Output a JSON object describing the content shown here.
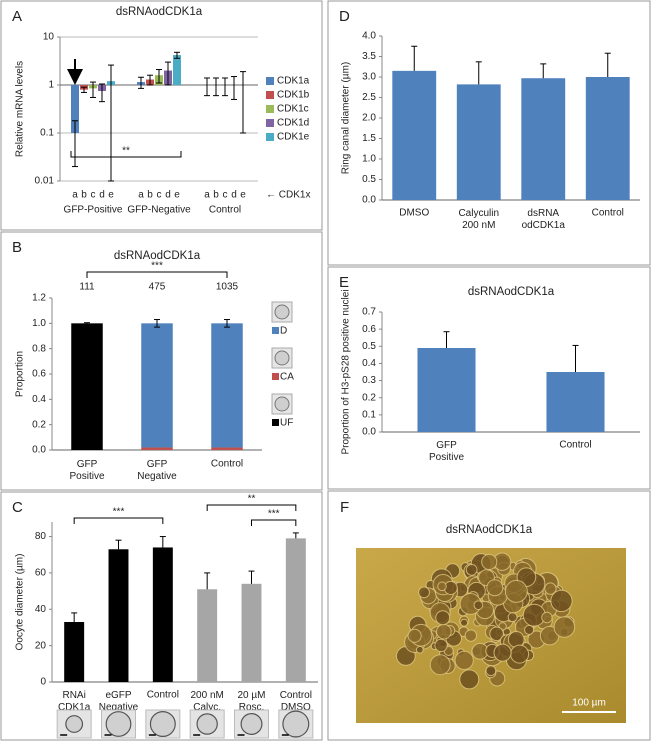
{
  "chart_data": [
    {
      "type": "bar",
      "panel": "A",
      "title": "dsRNAodCDK1a",
      "log_scale": true,
      "grid": true,
      "ylabel": "Relative mRNA levels",
      "categories": [
        "GFP-Positive",
        "GFP-Negative",
        "Control"
      ],
      "letters": [
        "a",
        "b",
        "c",
        "d",
        "e"
      ],
      "x_note": "← CDK1x",
      "series": [
        {
          "name": "CDK1a",
          "color": "#4f81bd",
          "values": [
            0.1,
            1.15,
            1.0
          ],
          "errors": [
            0.08,
            0.3,
            0.4
          ]
        },
        {
          "name": "CDK1b",
          "color": "#c0504d",
          "values": [
            0.8,
            1.3,
            1.0
          ],
          "errors": [
            0.1,
            0.3,
            0.4
          ]
        },
        {
          "name": "CDK1c",
          "color": "#9bbb59",
          "values": [
            0.85,
            1.6,
            1.0
          ],
          "errors": [
            0.3,
            0.5,
            0.4
          ]
        },
        {
          "name": "CDK1d",
          "color": "#8064a2",
          "values": [
            0.75,
            2.0,
            1.0
          ],
          "errors": [
            0.3,
            1.0,
            0.5
          ]
        },
        {
          "name": "CDK1e",
          "color": "#4bacc6",
          "values": [
            1.2,
            4.2,
            1.0
          ],
          "errors": [
            1.4,
            0.6,
            0.9
          ]
        }
      ],
      "ylim": [
        0.01,
        10
      ],
      "yticks": [
        0.01,
        0.1,
        1,
        10
      ],
      "annotations": [
        "**"
      ]
    },
    {
      "type": "bar",
      "panel": "B",
      "title": "dsRNAodCDK1a",
      "stacked": true,
      "ylabel": "Proportion",
      "categories": [
        "GFP\nPositive",
        "GFP\nNegative",
        "Control"
      ],
      "counts": [
        111,
        475,
        1035
      ],
      "series": [
        {
          "name": "UF",
          "color": "#000000",
          "values": [
            1.0,
            0,
            0
          ]
        },
        {
          "name": "CA",
          "color": "#c0504d",
          "values": [
            0,
            0.02,
            0.02
          ]
        },
        {
          "name": "D",
          "color": "#4f81bd",
          "values": [
            0,
            0.98,
            0.98
          ]
        }
      ],
      "errors": [
        0.005,
        0.03,
        0.03
      ],
      "ylim": [
        0,
        1.2
      ],
      "yticks": [
        {
          "value": 0,
          "label": "0.0"
        },
        {
          "value": 0.2,
          "label": "0.2"
        },
        {
          "value": 0.4,
          "label": "0.4"
        },
        {
          "value": 0.6,
          "label": "0.6"
        },
        {
          "value": 0.8,
          "label": "0.8"
        },
        {
          "value": 1.0,
          "label": "1.0"
        },
        {
          "value": 1.2,
          "label": "1.2"
        }
      ],
      "annotations": [
        "***"
      ]
    },
    {
      "type": "bar",
      "panel": "C",
      "ylabel": "Oocyte diameter (µm)",
      "categories": [
        "RNAi\nCDK1a",
        "eGFP\nNegative",
        "Control",
        "200 nM\nCalyc.",
        "20 µM\nRosc.",
        "Control\nDMSO"
      ],
      "values": [
        33,
        73,
        74,
        51,
        54,
        79
      ],
      "errors": [
        5,
        5,
        6,
        9,
        7,
        3
      ],
      "colors": [
        "#000000",
        "#000000",
        "#000000",
        "#a6a6a6",
        "#a6a6a6",
        "#a6a6a6"
      ],
      "ylim": [
        0,
        88
      ],
      "yticks": [
        0,
        20,
        40,
        60,
        80
      ],
      "annotations": [
        "***",
        "**",
        "***"
      ]
    },
    {
      "type": "bar",
      "panel": "D",
      "ylabel": "Ring canal diameter (µm)",
      "categories": [
        "DMSO",
        "Calyculin\n200 nM",
        "dsRNA\nodCDK1a",
        "Control"
      ],
      "values": [
        3.15,
        2.82,
        2.97,
        3.0
      ],
      "errors": [
        0.6,
        0.55,
        0.35,
        0.58
      ],
      "color": "#4f81bd",
      "ylim": [
        0,
        4
      ],
      "yticks": [
        {
          "value": 0,
          "label": "0.0"
        },
        {
          "value": 0.5,
          "label": "0.5"
        },
        {
          "value": 1,
          "label": "1.0"
        },
        {
          "value": 1.5,
          "label": "1.5"
        },
        {
          "value": 2,
          "label": "2.0"
        },
        {
          "value": 2.5,
          "label": "2.5"
        },
        {
          "value": 3,
          "label": "3.0"
        },
        {
          "value": 3.5,
          "label": "3.5"
        },
        {
          "value": 4,
          "label": "4.0"
        }
      ]
    },
    {
      "type": "bar",
      "panel": "E",
      "title": "dsRNAodCDK1a",
      "ylabel": "Proportion of H3-pS28 positive nuclei",
      "categories": [
        "GFP\nPositive",
        "Control"
      ],
      "values": [
        0.49,
        0.35
      ],
      "errors": [
        0.095,
        0.155
      ],
      "color": "#4f81bd",
      "ylim": [
        0,
        0.7
      ],
      "yticks": [
        {
          "value": 0,
          "label": "0.0"
        },
        {
          "value": 0.1,
          "label": "0.1"
        },
        {
          "value": 0.2,
          "label": "0.2"
        },
        {
          "value": 0.3,
          "label": "0.3"
        },
        {
          "value": 0.4,
          "label": "0.4"
        },
        {
          "value": 0.5,
          "label": "0.5"
        },
        {
          "value": 0.6,
          "label": "0.6"
        },
        {
          "value": 0.7,
          "label": "0.7"
        }
      ]
    }
  ],
  "figure_f": {
    "panel": "F",
    "title": "dsRNAodCDK1a",
    "scale_bar": "100 µm"
  }
}
